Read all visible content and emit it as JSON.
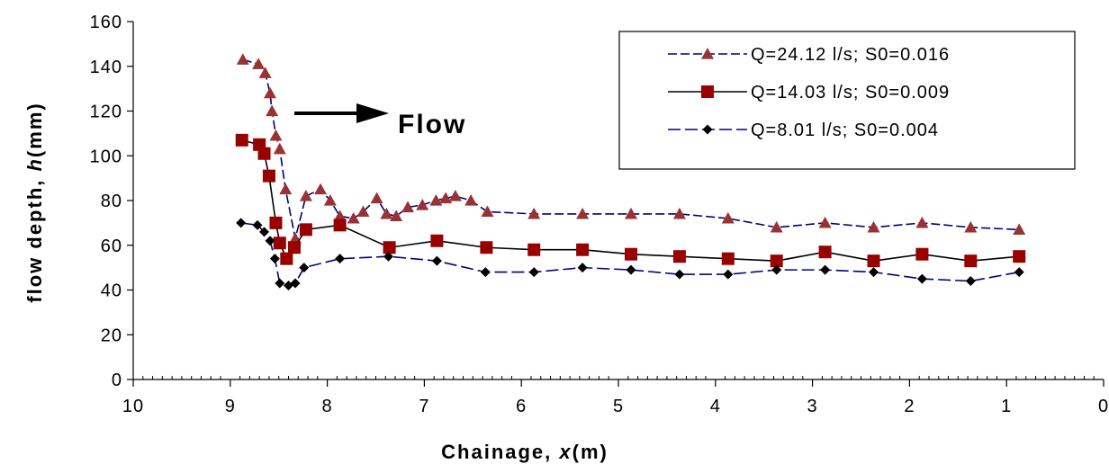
{
  "chart_data": {
    "type": "line",
    "xlabel": "Chainage, x(m)",
    "xlabel_prefix": "Chainage, ",
    "xlabel_var": "x",
    "xlabel_unit": "(m)",
    "ylabel": "flow depth, h(mm)",
    "ylabel_prefix": "flow depth, ",
    "ylabel_var": "h",
    "ylabel_unit": "(mm)",
    "xlim": [
      10,
      0
    ],
    "ylim": [
      0,
      160
    ],
    "x_reversed": true,
    "xticks": [
      10,
      9,
      8,
      7,
      6,
      5,
      4,
      3,
      2,
      1,
      0
    ],
    "yticks": [
      0,
      20,
      40,
      60,
      80,
      100,
      120,
      140,
      160
    ],
    "grid": false,
    "legend_position": "top-right",
    "annotation": "Flow",
    "series": [
      {
        "name": "Q=24.12 l/s; S0=0.016",
        "color": "#000080",
        "marker": "triangle",
        "marker_color": "#993333",
        "dash": "10,4",
        "x": [
          8.87,
          8.71,
          8.64,
          8.59,
          8.57,
          8.53,
          8.49,
          8.43,
          8.33,
          8.22,
          8.07,
          7.97,
          7.87,
          7.73,
          7.63,
          7.49,
          7.39,
          7.29,
          7.17,
          7.02,
          6.88,
          6.78,
          6.68,
          6.52,
          6.35,
          5.87,
          5.37,
          4.87,
          4.37,
          3.87,
          3.37,
          2.87,
          2.37,
          1.87,
          1.37,
          0.87
        ],
        "y": [
          143,
          141,
          137,
          128,
          120,
          109,
          103,
          85,
          63,
          82,
          85,
          80,
          73,
          72,
          75,
          81,
          74,
          73,
          77,
          78,
          80,
          81,
          82,
          80,
          75,
          74,
          74,
          74,
          74,
          72,
          68,
          70,
          68,
          70,
          68,
          67
        ]
      },
      {
        "name": "Q=14.03 l/s; S0=0.009",
        "color": "#000000",
        "marker": "square",
        "marker_color": "#990000",
        "dash": "",
        "x": [
          8.88,
          8.7,
          8.65,
          8.6,
          8.53,
          8.49,
          8.42,
          8.34,
          8.22,
          7.87,
          7.36,
          6.87,
          6.36,
          5.87,
          5.37,
          4.87,
          4.37,
          3.87,
          3.37,
          2.87,
          2.37,
          1.87,
          1.37,
          0.87
        ],
        "y": [
          107,
          105,
          101,
          91,
          70,
          61,
          54,
          59,
          67,
          69,
          59,
          62,
          59,
          58,
          58,
          56,
          55,
          54,
          53,
          57,
          53,
          56,
          53,
          55
        ]
      },
      {
        "name": "Q=8.01 l/s;   S0=0.004",
        "color": "#000080",
        "marker": "diamond",
        "marker_color": "#000000",
        "dash": "14,5",
        "x": [
          8.89,
          8.72,
          8.65,
          8.59,
          8.54,
          8.49,
          8.4,
          8.33,
          8.24,
          7.87,
          7.37,
          6.87,
          6.37,
          5.87,
          5.37,
          4.87,
          4.37,
          3.87,
          3.37,
          2.87,
          2.37,
          1.87,
          1.37,
          0.87
        ],
        "y": [
          70,
          69,
          66,
          62,
          54,
          43,
          42,
          43,
          50,
          54,
          55,
          53,
          48,
          48,
          50,
          49,
          47,
          47,
          49,
          49,
          48,
          45,
          44,
          48
        ]
      }
    ]
  }
}
